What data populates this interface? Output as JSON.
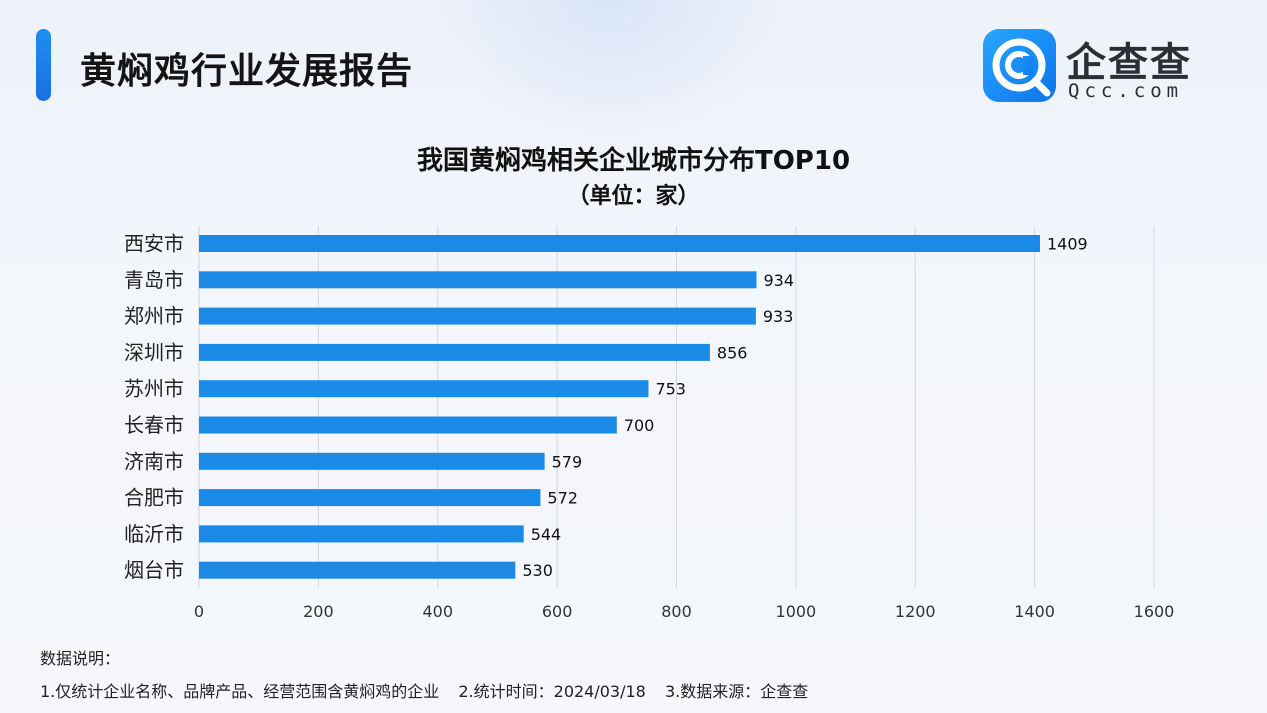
{
  "report": {
    "title": "黄焖鸡行业发展报告"
  },
  "brand": {
    "name_cn": "企查查",
    "name_en": "Qcc.com",
    "color": "#1682f0"
  },
  "notes": {
    "heading": "数据说明：",
    "items": [
      "1.仅统计企业名称、品牌产品、经营范围含黄焖鸡的企业",
      "2.统计时间：2024/03/18",
      "3.数据来源：企查查"
    ]
  },
  "chart_data": {
    "type": "bar",
    "orientation": "horizontal",
    "title": "我国黄焖鸡相关企业城市分布TOP10",
    "subtitle": "（单位：家）",
    "categories": [
      "西安市",
      "青岛市",
      "郑州市",
      "深圳市",
      "苏州市",
      "长春市",
      "济南市",
      "合肥市",
      "临沂市",
      "烟台市"
    ],
    "values": [
      1409,
      934,
      933,
      856,
      753,
      700,
      579,
      572,
      544,
      530
    ],
    "xlim": [
      0,
      1600
    ],
    "xticks": [
      0,
      200,
      400,
      600,
      800,
      1000,
      1200,
      1400,
      1600
    ],
    "grid": true,
    "data_labels": true,
    "bar_color": "#1a8ae6"
  }
}
